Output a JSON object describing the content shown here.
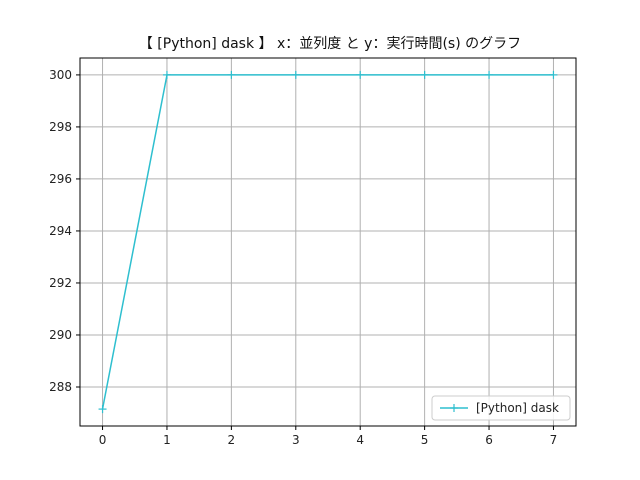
{
  "chart_data": {
    "type": "line",
    "title": "【 [Python] dask 】 x：並列度 と y：実行時間(s) のグラフ",
    "xlabel": "",
    "ylabel": "",
    "x": [
      0,
      1,
      2,
      3,
      4,
      5,
      6,
      7
    ],
    "series": [
      {
        "name": "[Python] dask",
        "values": [
          287.15,
          300,
          300,
          300,
          300,
          300,
          300,
          300
        ],
        "color": "#2ebfcf",
        "marker": "plus"
      }
    ],
    "xlim": [
      -0.35,
      7.35
    ],
    "ylim": [
      286.5,
      300.65
    ],
    "xticks": [
      0,
      1,
      2,
      3,
      4,
      5,
      6,
      7
    ],
    "yticks": [
      288,
      290,
      292,
      294,
      296,
      298,
      300
    ],
    "grid": true,
    "legend_position": "lower-right"
  }
}
